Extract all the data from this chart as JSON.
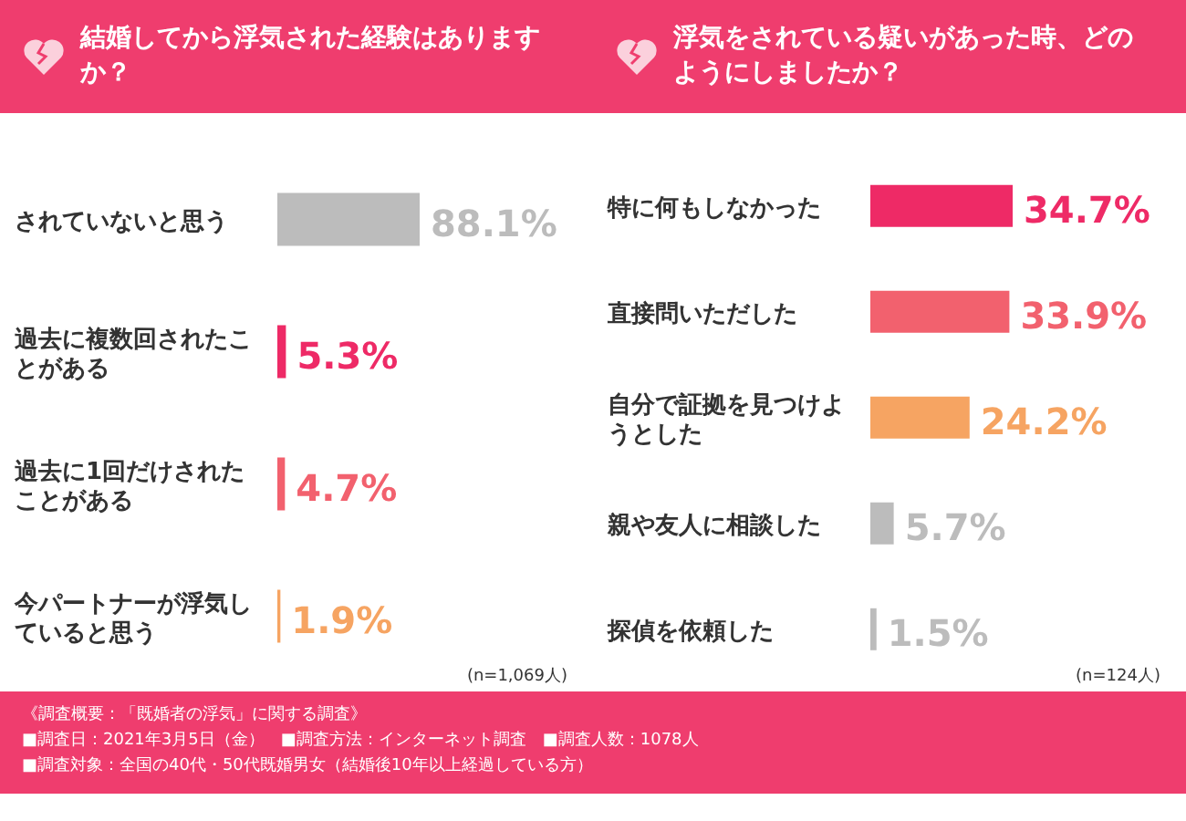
{
  "chart_data": [
    {
      "type": "bar",
      "orientation": "horizontal",
      "title": "結婚してから浮気された経験はありますか？",
      "categories": [
        "されていないと思う",
        "過去に複数回されたことがある",
        "過去に1回だけされたことがある",
        "今パートナーが浮気していると思う"
      ],
      "values": [
        88.1,
        5.3,
        4.7,
        1.9
      ],
      "value_labels": [
        "88.1%",
        "5.3%",
        "4.7%",
        "1.9%"
      ],
      "colors": [
        "#bcbcbc",
        "#ee2a66",
        "#f2616e",
        "#f6a462"
      ],
      "annotations": [
        "(n=1,069人)",
        "《調査概要：「既婚者の浮気」に関する調査》",
        "■調査日：2021年3月5日（金）　■調査方法：インターネット調査　■調査人数：1078人",
        "■調査対象：全国の40代・50代既婚男女（結婚後10年以上経過している方）"
      ]
    },
    {
      "type": "bar",
      "orientation": "horizontal",
      "title": "浮気をされている疑いがあった時、どのようにしましたか？",
      "categories": [
        "特に何もしなかった",
        "直接問いただした",
        "自分で証拠を見つけようとした",
        "親や友人に相談した",
        "探偵を依頼した"
      ],
      "values": [
        34.7,
        33.9,
        24.2,
        5.7,
        1.5
      ],
      "value_labels": [
        "34.7%",
        "33.9%",
        "24.2%",
        "5.7%",
        "1.5%"
      ],
      "colors": [
        "#ee2a66",
        "#f2616e",
        "#f6a462",
        "#bcbcbc",
        "#bcbcbc"
      ],
      "annotations": [
        "(n=124人)"
      ]
    }
  ]
}
